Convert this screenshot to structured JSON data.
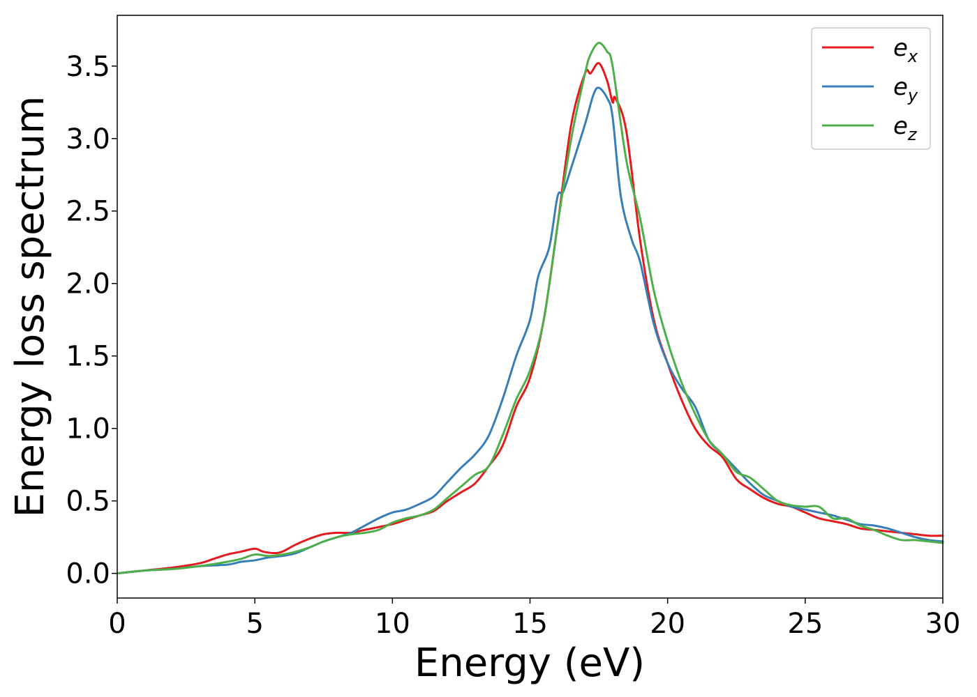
{
  "chart_data": {
    "type": "line",
    "title": "",
    "xlabel": "Energy (eV)",
    "ylabel": "Energy loss spectrum",
    "xlim": [
      0,
      30
    ],
    "ylim": [
      -0.17,
      3.85
    ],
    "xticks": [
      0,
      5,
      10,
      15,
      20,
      25,
      30
    ],
    "xtick_labels": [
      "0",
      "5",
      "10",
      "15",
      "20",
      "25",
      "30"
    ],
    "yticks": [
      0.0,
      0.5,
      1.0,
      1.5,
      2.0,
      2.5,
      3.0,
      3.5
    ],
    "ytick_labels": [
      "0.0",
      "0.5",
      "1.0",
      "1.5",
      "2.0",
      "2.5",
      "3.0",
      "3.5"
    ],
    "grid": false,
    "legend_position": "top-right",
    "series": [
      {
        "name": "e_x",
        "label_base": "e",
        "label_sub": "x",
        "color": "#e41a1c",
        "x": [
          0,
          1,
          2,
          3,
          3.5,
          4,
          4.5,
          5,
          5.3,
          5.7,
          6,
          6.5,
          7,
          7.5,
          8,
          8.5,
          9,
          10,
          10.5,
          11,
          11.5,
          12,
          12.5,
          13,
          13.5,
          14,
          14.5,
          15,
          15.5,
          16,
          16.5,
          17,
          17.2,
          17.5,
          17.8,
          18,
          18.1,
          18.5,
          19,
          19.5,
          20,
          20.5,
          21,
          21.5,
          22,
          22.5,
          23,
          23.5,
          24,
          24.5,
          25,
          25.5,
          26,
          26.5,
          27,
          27.5,
          28,
          28.5,
          29,
          29.5,
          30
        ],
        "values": [
          0.0,
          0.02,
          0.04,
          0.07,
          0.1,
          0.13,
          0.15,
          0.17,
          0.15,
          0.14,
          0.15,
          0.2,
          0.24,
          0.27,
          0.28,
          0.28,
          0.3,
          0.34,
          0.37,
          0.4,
          0.43,
          0.5,
          0.56,
          0.62,
          0.74,
          0.88,
          1.15,
          1.35,
          1.75,
          2.4,
          3.1,
          3.45,
          3.45,
          3.52,
          3.4,
          3.25,
          3.28,
          3.05,
          2.3,
          1.75,
          1.45,
          1.2,
          1.0,
          0.88,
          0.8,
          0.65,
          0.58,
          0.52,
          0.48,
          0.46,
          0.42,
          0.38,
          0.36,
          0.34,
          0.31,
          0.3,
          0.29,
          0.28,
          0.27,
          0.26,
          0.26
        ]
      },
      {
        "name": "e_y",
        "label_base": "e",
        "label_sub": "y",
        "color": "#377eb8",
        "x": [
          0,
          1,
          2,
          3,
          4,
          4.5,
          5,
          5.5,
          6,
          6.5,
          7,
          7.5,
          8,
          8.5,
          9,
          9.5,
          10,
          10.5,
          11,
          11.5,
          12,
          12.5,
          13,
          13.5,
          14,
          14.5,
          15,
          15.3,
          15.7,
          16,
          16.2,
          16.5,
          17,
          17.3,
          17.5,
          17.8,
          18,
          18.3,
          18.7,
          19,
          19.5,
          20,
          20.5,
          21,
          21.5,
          22,
          22.5,
          23,
          23.5,
          24,
          24.5,
          25,
          25.5,
          26,
          26.5,
          27,
          27.5,
          28,
          28.5,
          29,
          29.5,
          30
        ],
        "values": [
          0.0,
          0.02,
          0.03,
          0.05,
          0.06,
          0.08,
          0.09,
          0.11,
          0.12,
          0.14,
          0.18,
          0.22,
          0.25,
          0.28,
          0.33,
          0.38,
          0.42,
          0.44,
          0.48,
          0.53,
          0.63,
          0.73,
          0.82,
          0.95,
          1.2,
          1.5,
          1.75,
          2.05,
          2.25,
          2.6,
          2.63,
          2.8,
          3.1,
          3.3,
          3.35,
          3.28,
          3.15,
          2.6,
          2.3,
          2.15,
          1.72,
          1.45,
          1.28,
          1.15,
          0.92,
          0.82,
          0.72,
          0.62,
          0.54,
          0.5,
          0.46,
          0.44,
          0.42,
          0.4,
          0.37,
          0.34,
          0.33,
          0.31,
          0.28,
          0.25,
          0.23,
          0.22
        ]
      },
      {
        "name": "e_z",
        "label_base": "e",
        "label_sub": "z",
        "color": "#4daf4a",
        "x": [
          0,
          1,
          2,
          3,
          4,
          4.5,
          5,
          5.5,
          6,
          6.5,
          7,
          7.5,
          8,
          8.5,
          9,
          9.5,
          10,
          10.5,
          11,
          11.5,
          12,
          12.5,
          13,
          13.5,
          14,
          14.5,
          15,
          15.5,
          16,
          16.5,
          17,
          17.2,
          17.5,
          17.8,
          18,
          18.5,
          19,
          19.5,
          20,
          20.5,
          21,
          21.5,
          22,
          22.5,
          23,
          23.5,
          24,
          24.5,
          25,
          25.5,
          26,
          26.5,
          27,
          27.5,
          28,
          28.5,
          29,
          29.5,
          30
        ],
        "values": [
          0.0,
          0.02,
          0.03,
          0.05,
          0.08,
          0.1,
          0.13,
          0.12,
          0.13,
          0.15,
          0.18,
          0.22,
          0.25,
          0.27,
          0.28,
          0.3,
          0.35,
          0.38,
          0.4,
          0.44,
          0.52,
          0.6,
          0.68,
          0.74,
          0.95,
          1.2,
          1.4,
          1.75,
          2.4,
          3.0,
          3.45,
          3.58,
          3.66,
          3.6,
          3.5,
          2.85,
          2.45,
          1.95,
          1.6,
          1.32,
          1.1,
          0.92,
          0.82,
          0.7,
          0.66,
          0.58,
          0.5,
          0.47,
          0.46,
          0.46,
          0.38,
          0.38,
          0.33,
          0.3,
          0.26,
          0.23,
          0.23,
          0.22,
          0.21
        ]
      }
    ]
  }
}
